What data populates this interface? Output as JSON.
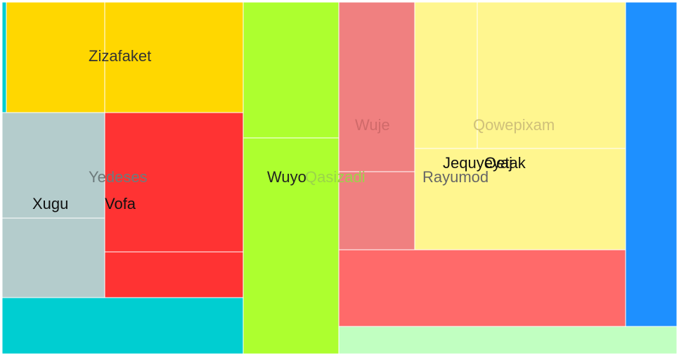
{
  "chart_data": {
    "type": "treemap",
    "title": "",
    "labels": [
      {
        "key": "zizafaket",
        "text": "Zizafaket",
        "color": "#333333"
      },
      {
        "key": "yedeses",
        "text": "Yedeses",
        "color": "#6e7b7c"
      },
      {
        "key": "xugu",
        "text": "Xugu",
        "color": "#111111"
      },
      {
        "key": "vofa",
        "text": "Vofa",
        "color": "#111111"
      },
      {
        "key": "wuyo",
        "text": "Wuyo",
        "color": "#222222"
      },
      {
        "key": "qasizadi",
        "text": "Qasizadi",
        "color": "#9bd44a"
      },
      {
        "key": "wuje",
        "text": "Wuje",
        "color": "#d06a6a"
      },
      {
        "key": "qowepixam",
        "text": "Qowepixam",
        "color": "#cfc07a"
      },
      {
        "key": "rayumod",
        "text": "Rayumod",
        "color": "#666666"
      },
      {
        "key": "jequyeyaj",
        "text": "Jequyeyaj",
        "color": "#111111"
      },
      {
        "key": "oetak",
        "text": "Oetak",
        "color": "#111111"
      }
    ],
    "colors": {
      "cyan": "#00ced1",
      "gold": "#ffd700",
      "slate": "#b4cccc",
      "red": "#ff3333",
      "lime": "#adff2f",
      "coral": "#f08080",
      "salmon": "#ff6a6a",
      "khaki": "#fff68f",
      "blue": "#1e90ff",
      "mint": "#c1ffc1"
    }
  }
}
